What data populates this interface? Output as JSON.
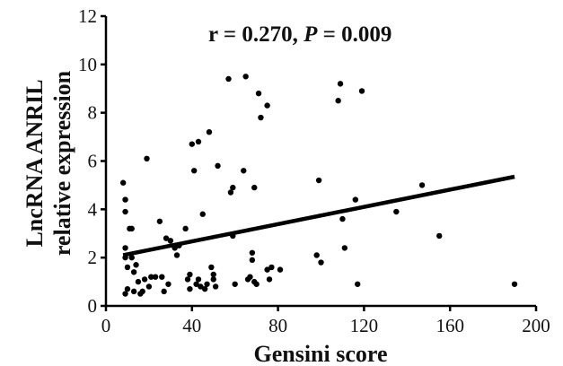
{
  "chart_data": {
    "type": "scatter",
    "annotation": {
      "r_text": "r = 0.270, ",
      "p_symbol": "P",
      "p_text": " = 0.009"
    },
    "xlabel": "Gensini score",
    "ylabel_lines": [
      "LncRNA ANRIL",
      "relative expression"
    ],
    "xlim": [
      0,
      200
    ],
    "ylim": [
      0,
      12
    ],
    "xticks": [
      0,
      40,
      80,
      120,
      160,
      200
    ],
    "yticks": [
      0,
      2,
      4,
      6,
      8,
      10,
      12
    ],
    "grid": false,
    "legend": "none",
    "point_color": "#000000",
    "line_color": "#000000",
    "points": [
      [
        8,
        5.1
      ],
      [
        9,
        4.4
      ],
      [
        9,
        3.9
      ],
      [
        9,
        2.4
      ],
      [
        9,
        2.0
      ],
      [
        9,
        0.5
      ],
      [
        10,
        1.6
      ],
      [
        10,
        0.7
      ],
      [
        11,
        3.2
      ],
      [
        12,
        3.2
      ],
      [
        12,
        2.0
      ],
      [
        13,
        1.4
      ],
      [
        13,
        0.6
      ],
      [
        14,
        1.7
      ],
      [
        15,
        1.0
      ],
      [
        16,
        0.5
      ],
      [
        17,
        0.6
      ],
      [
        18,
        1.1
      ],
      [
        19,
        6.1
      ],
      [
        20,
        0.8
      ],
      [
        21,
        1.2
      ],
      [
        23,
        1.2
      ],
      [
        25,
        3.5
      ],
      [
        26,
        1.2
      ],
      [
        27,
        0.6
      ],
      [
        28,
        2.8
      ],
      [
        29,
        0.9
      ],
      [
        30,
        2.7
      ],
      [
        32,
        2.4
      ],
      [
        33,
        2.1
      ],
      [
        34,
        2.5
      ],
      [
        37,
        3.2
      ],
      [
        38,
        1.1
      ],
      [
        39,
        1.3
      ],
      [
        39,
        0.7
      ],
      [
        40,
        6.7
      ],
      [
        41,
        5.6
      ],
      [
        42,
        0.9
      ],
      [
        43,
        6.8
      ],
      [
        43,
        1.1
      ],
      [
        44,
        0.8
      ],
      [
        45,
        3.8
      ],
      [
        46,
        0.7
      ],
      [
        47,
        0.9
      ],
      [
        48,
        7.2
      ],
      [
        49,
        1.6
      ],
      [
        50,
        1.3
      ],
      [
        50,
        1.1
      ],
      [
        51,
        0.8
      ],
      [
        52,
        5.8
      ],
      [
        57,
        9.4
      ],
      [
        58,
        4.7
      ],
      [
        59,
        4.9
      ],
      [
        59,
        2.9
      ],
      [
        60,
        0.9
      ],
      [
        64,
        5.6
      ],
      [
        65,
        9.5
      ],
      [
        66,
        1.1
      ],
      [
        67,
        1.2
      ],
      [
        68,
        2.2
      ],
      [
        68,
        1.9
      ],
      [
        69,
        4.9
      ],
      [
        69,
        1.0
      ],
      [
        70,
        0.9
      ],
      [
        71,
        8.8
      ],
      [
        72,
        7.8
      ],
      [
        75,
        8.3
      ],
      [
        75,
        1.5
      ],
      [
        76,
        1.1
      ],
      [
        77,
        1.6
      ],
      [
        81,
        1.5
      ],
      [
        98,
        2.1
      ],
      [
        99,
        5.2
      ],
      [
        100,
        1.8
      ],
      [
        108,
        8.5
      ],
      [
        109,
        9.2
      ],
      [
        110,
        3.6
      ],
      [
        111,
        2.4
      ],
      [
        116,
        4.4
      ],
      [
        117,
        0.9
      ],
      [
        119,
        8.9
      ],
      [
        135,
        3.9
      ],
      [
        147,
        5.0
      ],
      [
        155,
        2.9
      ],
      [
        190,
        0.9
      ]
    ],
    "regression_line": {
      "x": [
        8,
        190
      ],
      "y": [
        2.1,
        5.35
      ]
    }
  }
}
